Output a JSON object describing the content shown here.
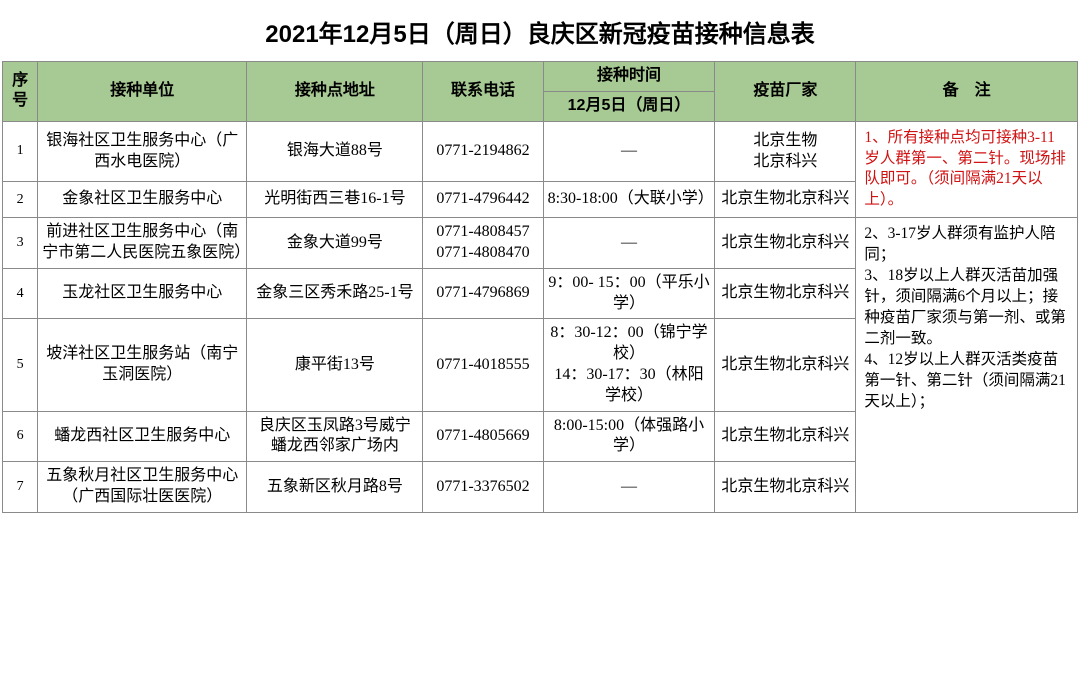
{
  "title": "2021年12月5日（周日）良庆区新冠疫苗接种信息表",
  "headers": {
    "seq": "序号",
    "unit": "接种单位",
    "addr": "接种点地址",
    "phone": "联系电话",
    "time_group": "接种时间",
    "time_sub": "12月5日（周日）",
    "vendor": "疫苗厂家",
    "note": "备　注"
  },
  "rows": [
    {
      "seq": "1",
      "unit": "银海社区卫生服务中心（广西水电医院）",
      "addr": "银海大道88号",
      "phone": "0771-2194862",
      "time": "—",
      "vendor": "北京生物\n北京科兴"
    },
    {
      "seq": "2",
      "unit": "金象社区卫生服务中心",
      "addr": "光明街西三巷16-1号",
      "phone": "0771-4796442",
      "time": "8:30-18:00（大联小学）",
      "vendor": "北京生物北京科兴"
    },
    {
      "seq": "3",
      "unit": "前进社区卫生服务中心（南宁市第二人民医院五象医院）",
      "addr": "金象大道99号",
      "phone": "0771-4808457\n0771-4808470",
      "time": "—",
      "vendor": "北京生物北京科兴"
    },
    {
      "seq": "4",
      "unit": "玉龙社区卫生服务中心",
      "addr": "金象三区秀禾路25-1号",
      "phone": "0771-4796869",
      "time": "9：00- 15：00（平乐小学）",
      "vendor": "北京生物北京科兴"
    },
    {
      "seq": "5",
      "unit": "坡洋社区卫生服务站（南宁玉洞医院）",
      "addr": "康平街13号",
      "phone": "0771-4018555",
      "time": "8：30-12：00（锦宁学校）\n14：30-17：30（林阳学校）",
      "vendor": "北京生物北京科兴"
    },
    {
      "seq": "6",
      "unit": "蟠龙西社区卫生服务中心",
      "addr": "良庆区玉凤路3号威宁蟠龙西邻家广场内",
      "phone": "0771-4805669",
      "time": "8:00-15:00（体强路小学）",
      "vendor": "北京生物北京科兴"
    },
    {
      "seq": "7",
      "unit": "五象秋月社区卫生服务中心（广西国际壮医医院）",
      "addr": "五象新区秋月路8号",
      "phone": "0771-3376502",
      "time": "—",
      "vendor": "北京生物北京科兴"
    }
  ],
  "notes": {
    "n1": "1、所有接种点均可接种3-11岁人群第一、第二针。现场排队即可。（须间隔满21天以上）。",
    "n2": "2、3-17岁人群须有监护人陪同；\n3、18岁以上人群灭活苗加强针，须间隔满6个月以上；接种疫苗厂家须与第一剂、或第二剂一致。\n4、12岁以上人群灭活类疫苗第一针、第二针（须间隔满21天以上）；"
  },
  "colors": {
    "header_bg": "#a7c993",
    "border": "#8a8a8a",
    "red": "#d11212",
    "text": "#000000",
    "background": "#ffffff"
  }
}
